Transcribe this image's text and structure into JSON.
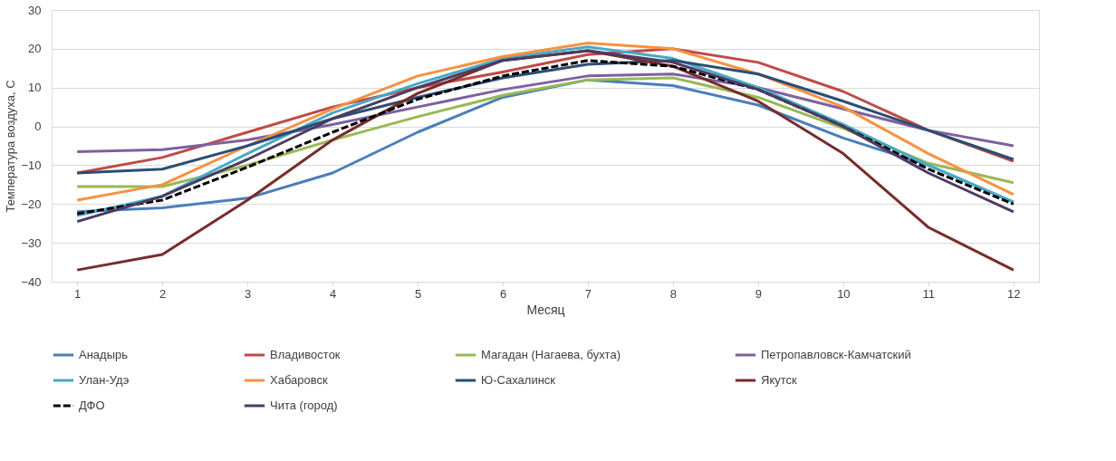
{
  "chart_data": {
    "type": "line",
    "xlabel": "Месяц",
    "ylabel": "Температура воздуха, С",
    "categories": [
      "1",
      "2",
      "3",
      "4",
      "5",
      "6",
      "7",
      "8",
      "9",
      "10",
      "11",
      "12"
    ],
    "ylim": [
      -40,
      30
    ],
    "yticks": [
      -40,
      -30,
      -20,
      -10,
      0,
      10,
      20,
      30
    ],
    "grid": "y",
    "legend": "bottom",
    "marker": "none",
    "series": [
      {
        "name": "Анадырь",
        "color": "#4a7ebb",
        "values": [
          -22,
          -21,
          -18.5,
          -12,
          -1.5,
          7.5,
          12,
          10.5,
          5.5,
          -3,
          -10,
          -19.5
        ]
      },
      {
        "name": "Владивосток",
        "color": "#be4b48",
        "values": [
          -12,
          -8,
          -1.5,
          5,
          10,
          14,
          18.5,
          20,
          16.5,
          9,
          -1,
          -9
        ]
      },
      {
        "name": "Магадан (Нагаева, бухта)",
        "color": "#98b954",
        "values": [
          -15.5,
          -15.5,
          -10,
          -3.5,
          2.5,
          8,
          12,
          12.5,
          7.5,
          -0.5,
          -9.5,
          -14.5
        ]
      },
      {
        "name": "Петропавловск-Камчатский",
        "color": "#7d60a0",
        "values": [
          -6.5,
          -6,
          -3.5,
          0.5,
          5,
          9.5,
          13,
          13.5,
          10,
          4.5,
          -1,
          -5
        ]
      },
      {
        "name": "Улан-Удэ",
        "color": "#46aac5",
        "values": [
          -23,
          -18,
          -7,
          3.5,
          11,
          17.5,
          20.5,
          17.5,
          10,
          0.5,
          -10,
          -19.5
        ]
      },
      {
        "name": "Хабаровск",
        "color": "#f69240",
        "values": [
          -19,
          -15,
          -5,
          4.5,
          13,
          18,
          21.5,
          20,
          13.5,
          5,
          -7,
          -17.5
        ]
      },
      {
        "name": "Ю-Сахалинск",
        "color": "#2c4d75",
        "values": [
          -12,
          -11,
          -5,
          2,
          7.5,
          12.5,
          16,
          17,
          13.5,
          6.5,
          -1,
          -8.5
        ]
      },
      {
        "name": "Якутск",
        "color": "#772c2a",
        "values": [
          -37,
          -33,
          -19,
          -3.5,
          8.5,
          17,
          19.5,
          15.5,
          6.5,
          -7,
          -26,
          -37
        ]
      },
      {
        "name": "ДФО",
        "color": "#000000",
        "line_style": "dashed",
        "values": [
          -22.5,
          -19,
          -10.5,
          -1.5,
          7,
          13,
          17,
          15.5,
          9.5,
          0,
          -11,
          -20
        ]
      },
      {
        "name": "Чита (город)",
        "color": "#4d3b62",
        "values": [
          -24.5,
          -18,
          -8.5,
          2,
          10,
          17,
          19.5,
          16.5,
          9.5,
          0,
          -12,
          -22
        ]
      }
    ]
  }
}
